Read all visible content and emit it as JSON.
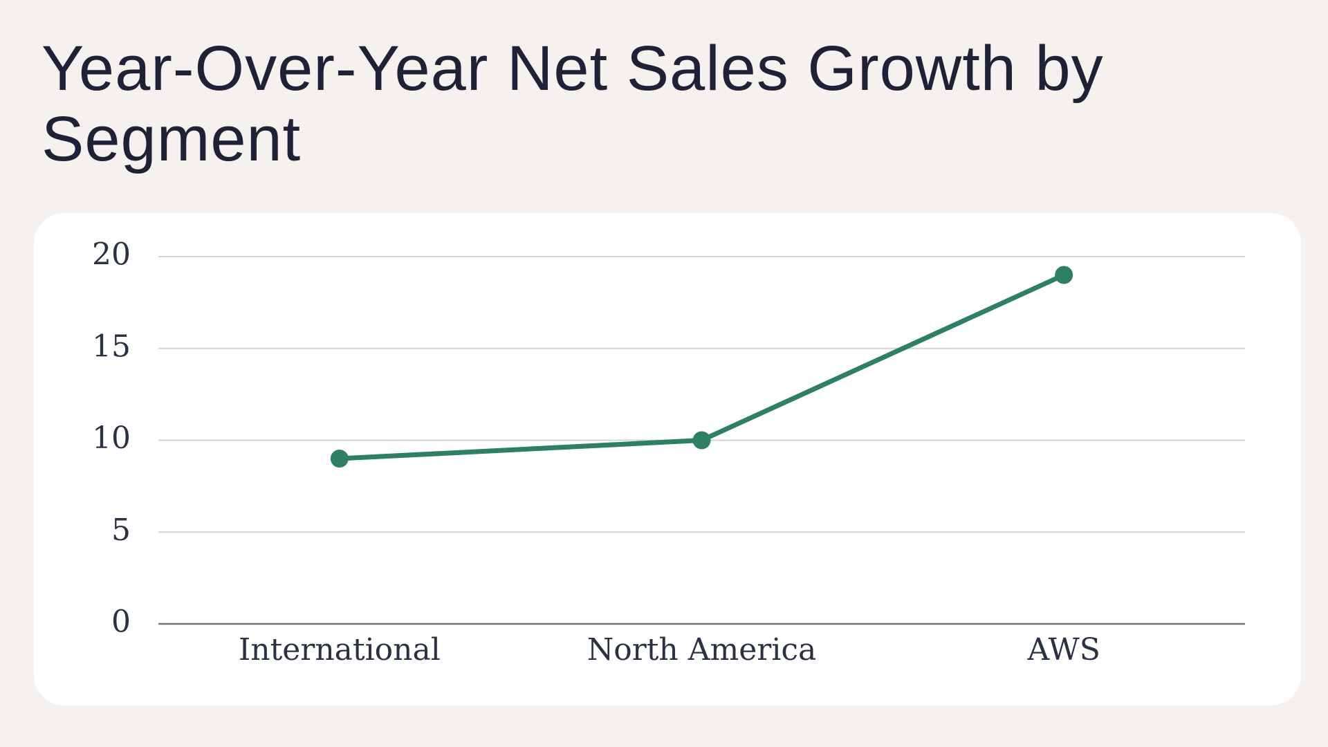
{
  "title": "Year-Over-Year Net Sales Growth by Segment",
  "colors": {
    "background": "#f4f1ee",
    "card": "#ffffff",
    "series_line": "#2f7f63",
    "gridline": "#d2d4d8",
    "axis_line": "#6b7280",
    "text": "#1f2136"
  },
  "chart_data": {
    "type": "line",
    "title": "Year-Over-Year Net Sales Growth by Segment",
    "categories": [
      "International",
      "North America",
      "AWS"
    ],
    "series": [
      {
        "values": [
          9,
          10,
          19
        ]
      }
    ],
    "xlabel": "",
    "ylabel": "",
    "ylim": [
      0,
      20
    ],
    "yticks": [
      0,
      5,
      10,
      15,
      20
    ],
    "grid": true,
    "legend": "none"
  }
}
